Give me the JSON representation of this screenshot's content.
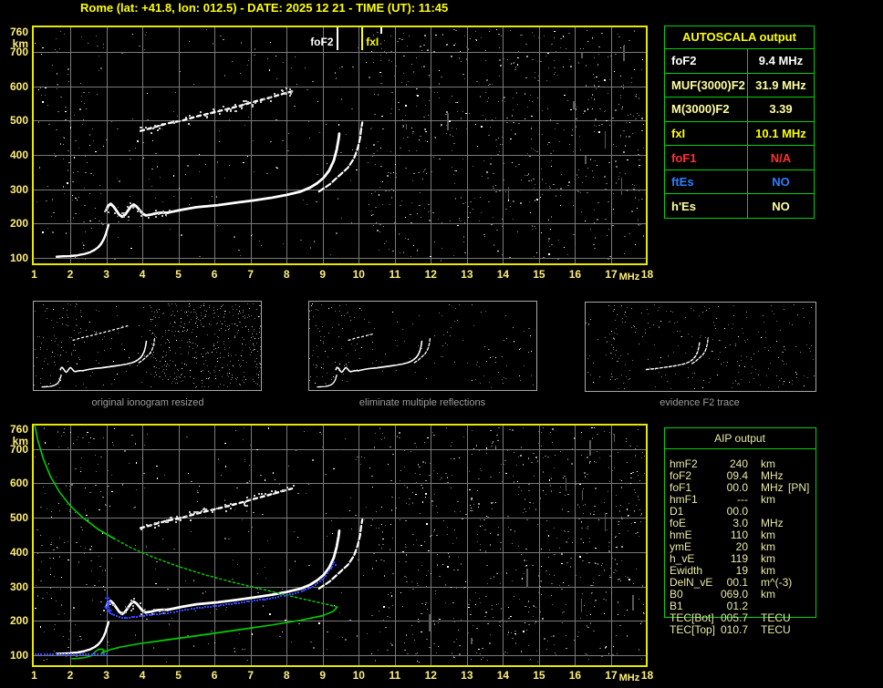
{
  "title": "Rome (lat: +41.8, lon: 012.5) - DATE: 2025 12 21 - TIME (UT): 11:45",
  "colors": {
    "background": "#000000",
    "title_yellow": "#ffff00",
    "axis_label_yellow": "#ffee77",
    "plot_border_yellow": "#e8e800",
    "grid_gray": "#7a7a7a",
    "table_border_green": "#00d400",
    "trace_white": "#ffffff",
    "profile_green": "#00d000",
    "fit_blue": "#3344ff",
    "marker_foF2": "#ffffff",
    "marker_fxI": "#ffff00",
    "pale_yellow": "#ffff9e",
    "red": "#ff3030",
    "blue": "#2a7fff",
    "caption_gray": "#9d9d9d"
  },
  "autoscala_table": {
    "header": "AUTOSCALA output",
    "rows": [
      {
        "param": "foF2",
        "value": "9.4 MHz",
        "color": "#ffffff"
      },
      {
        "param": "MUF(3000)F2",
        "value": "31.9 MHz",
        "color": "#ffff9e"
      },
      {
        "param": "M(3000)F2",
        "value": "3.39",
        "color": "#ffff9e"
      },
      {
        "param": "fxI",
        "value": "10.1 MHz",
        "color": "#ffff00"
      },
      {
        "param": "foF1",
        "value": "N/A",
        "color": "#ff3030"
      },
      {
        "param": "ftEs",
        "value": "NO",
        "color": "#2a7fff"
      },
      {
        "param": "h'Es",
        "value": "NO",
        "color": "#ffff9e"
      }
    ]
  },
  "aip_table": {
    "header": "AIP output",
    "rows": [
      {
        "param": "hmF2",
        "value": "240",
        "unit": "km",
        "note": ""
      },
      {
        "param": "foF2",
        "value": "09.4",
        "unit": "MHz",
        "note": ""
      },
      {
        "param": "foF1",
        "value": "00.0",
        "unit": "MHz",
        "note": "[PN]"
      },
      {
        "param": "hmF1",
        "value": "---",
        "unit": "km",
        "note": ""
      },
      {
        "param": "D1",
        "value": "00.0",
        "unit": "",
        "note": ""
      },
      {
        "param": "foE",
        "value": "3.0",
        "unit": "MHz",
        "note": ""
      },
      {
        "param": "hmE",
        "value": "110",
        "unit": "km",
        "note": ""
      },
      {
        "param": "ymE",
        "value": "20",
        "unit": "km",
        "note": ""
      },
      {
        "param": "h_vE",
        "value": "119",
        "unit": "km",
        "note": ""
      },
      {
        "param": "Ewidth",
        "value": "19",
        "unit": "km",
        "note": ""
      },
      {
        "param": "DelN_vE",
        "value": "00.1",
        "unit": "m^(-3)",
        "note": ""
      },
      {
        "param": "B0",
        "value": "069.0",
        "unit": "km",
        "note": ""
      },
      {
        "param": "B1",
        "value": "01.2",
        "unit": "",
        "note": ""
      },
      {
        "param": "TEC[Bot]",
        "value": "005.7",
        "unit": "TECU",
        "note": ""
      },
      {
        "param": "TEC[Top]",
        "value": "010.7",
        "unit": "TECU",
        "note": ""
      }
    ]
  },
  "thumbnails": [
    {
      "caption": "original ionogram resized"
    },
    {
      "caption": "eliminate multiple reflections"
    },
    {
      "caption": "evidence F2 trace"
    }
  ],
  "chart_data": [
    {
      "id": "ionogram-top",
      "type": "scatter",
      "title": "vertical ionogram with autoscaled characteristics",
      "xlabel": "MHz",
      "ylabel": "km",
      "xlim": [
        1,
        18
      ],
      "ylim": [
        100,
        760
      ],
      "grid": true,
      "x_ticks": [
        "1",
        "2",
        "3",
        "4",
        "5",
        "6",
        "7",
        "8",
        "9",
        "10",
        "11",
        "12",
        "13",
        "14",
        "15",
        "16",
        "17",
        "18"
      ],
      "y_ticks": [
        "760",
        "km",
        "700",
        "600",
        "500",
        "400",
        "300",
        "200",
        "100"
      ],
      "markers": {
        "foF2": {
          "label": "foF2",
          "MHz": 9.4,
          "color": "#ffffff"
        },
        "fxI": {
          "label": "fxI",
          "MHz": 10.1,
          "color": "#ffff00"
        },
        "extra_tick_MHz": 10.6
      },
      "traces": {
        "e_layer": [
          [
            1.62,
            104
          ],
          [
            1.8,
            105
          ],
          [
            2.0,
            106
          ],
          [
            2.2,
            108
          ],
          [
            2.4,
            112
          ],
          [
            2.55,
            117
          ],
          [
            2.68,
            124
          ],
          [
            2.78,
            132
          ],
          [
            2.86,
            142
          ],
          [
            2.93,
            155
          ],
          [
            2.98,
            168
          ],
          [
            3.02,
            182
          ],
          [
            3.06,
            196
          ]
        ],
        "f_wiggle": [
          [
            3.0,
            240
          ],
          [
            3.05,
            252
          ],
          [
            3.12,
            258
          ],
          [
            3.2,
            250
          ],
          [
            3.28,
            238
          ],
          [
            3.36,
            226
          ],
          [
            3.44,
            220
          ],
          [
            3.52,
            226
          ],
          [
            3.6,
            238
          ],
          [
            3.68,
            250
          ],
          [
            3.76,
            256
          ],
          [
            3.84,
            250
          ],
          [
            3.92,
            240
          ],
          [
            4.0,
            230
          ],
          [
            4.1,
            224
          ],
          [
            4.25,
            227
          ],
          [
            4.4,
            231
          ],
          [
            4.55,
            232
          ],
          [
            4.7,
            232
          ]
        ],
        "f_main": [
          [
            4.7,
            232
          ],
          [
            5.1,
            241
          ],
          [
            5.5,
            248
          ],
          [
            6.1,
            254
          ],
          [
            6.6,
            261
          ],
          [
            7.1,
            268
          ],
          [
            7.6,
            276
          ],
          [
            8.0,
            284
          ],
          [
            8.4,
            294
          ],
          [
            8.65,
            305
          ],
          [
            8.85,
            318
          ],
          [
            9.03,
            334
          ],
          [
            9.18,
            355
          ],
          [
            9.31,
            384
          ],
          [
            9.39,
            416
          ],
          [
            9.44,
            445
          ],
          [
            9.46,
            462
          ]
        ],
        "x_branch": [
          [
            8.9,
            294
          ],
          [
            9.2,
            315
          ],
          [
            9.45,
            339
          ],
          [
            9.7,
            363
          ],
          [
            9.87,
            390
          ],
          [
            9.97,
            419
          ],
          [
            10.04,
            450
          ],
          [
            10.07,
            477
          ],
          [
            10.1,
            495
          ]
        ],
        "second_hop": [
          [
            3.95,
            470
          ],
          [
            4.3,
            480
          ],
          [
            4.7,
            492
          ],
          [
            5.1,
            500
          ],
          [
            5.5,
            512
          ],
          [
            5.9,
            522
          ],
          [
            6.3,
            532
          ],
          [
            6.7,
            543
          ],
          [
            7.1,
            555
          ],
          [
            7.5,
            566
          ],
          [
            7.9,
            578
          ],
          [
            8.15,
            585
          ]
        ]
      }
    },
    {
      "id": "ionogram-bottom",
      "type": "scatter",
      "title": "ionogram with restored trace and electron density profile",
      "xlabel": "MHz",
      "ylabel": "km",
      "xlim": [
        1,
        18
      ],
      "ylim": [
        100,
        760
      ],
      "grid": true,
      "x_ticks": [
        "1",
        "2",
        "3",
        "4",
        "5",
        "6",
        "7",
        "8",
        "9",
        "10",
        "11",
        "12",
        "13",
        "14",
        "15",
        "16",
        "17",
        "18"
      ],
      "y_ticks": [
        "760",
        "km",
        "700",
        "600",
        "500",
        "400",
        "300",
        "200",
        "100"
      ],
      "white_traces": "same_as_ionogram_top",
      "profile_topside_green": [
        [
          1.02,
          768
        ],
        [
          1.1,
          725
        ],
        [
          1.25,
          672
        ],
        [
          1.45,
          620
        ],
        [
          1.7,
          575
        ],
        [
          2.0,
          535
        ],
        [
          2.35,
          500
        ],
        [
          2.75,
          468
        ],
        [
          3.2,
          440
        ],
        [
          3.7,
          412
        ],
        [
          4.3,
          385
        ],
        [
          5.0,
          358
        ],
        [
          5.8,
          332
        ],
        [
          6.6,
          310
        ],
        [
          7.4,
          290
        ],
        [
          8.1,
          272
        ],
        [
          8.7,
          258
        ],
        [
          9.15,
          247
        ],
        [
          9.4,
          240
        ]
      ],
      "profile_bottomside_green": [
        [
          9.4,
          240
        ],
        [
          9.3,
          228
        ],
        [
          9.0,
          215
        ],
        [
          8.4,
          202
        ],
        [
          7.6,
          188
        ],
        [
          6.8,
          176
        ],
        [
          6.0,
          164
        ],
        [
          5.2,
          152
        ],
        [
          4.5,
          142
        ],
        [
          3.9,
          133
        ],
        [
          3.4,
          124
        ],
        [
          3.1,
          116
        ],
        [
          2.95,
          110
        ],
        [
          2.86,
          104
        ]
      ],
      "profile_e_region_green": [
        [
          2.86,
          104
        ],
        [
          2.9,
          110
        ],
        [
          2.94,
          114
        ],
        [
          2.88,
          118
        ],
        [
          2.78,
          117
        ],
        [
          2.7,
          111
        ],
        [
          2.64,
          104
        ],
        [
          2.55,
          97
        ],
        [
          2.4,
          93
        ],
        [
          2.2,
          91
        ],
        [
          2.05,
          90
        ]
      ],
      "fitted_trace_blue": [
        [
          3.02,
          238
        ],
        [
          3.1,
          228
        ],
        [
          3.2,
          222
        ],
        [
          3.35,
          217
        ],
        [
          3.5,
          215
        ],
        [
          3.7,
          217
        ],
        [
          3.9,
          220
        ],
        [
          4.1,
          222
        ],
        [
          4.4,
          226
        ],
        [
          4.7,
          229
        ],
        [
          5.1,
          237
        ],
        [
          5.5,
          244
        ],
        [
          6.1,
          251
        ],
        [
          6.6,
          258
        ],
        [
          7.1,
          265
        ],
        [
          7.6,
          273
        ],
        [
          8.0,
          281
        ],
        [
          8.4,
          291
        ],
        [
          8.65,
          302
        ],
        [
          8.85,
          315
        ],
        [
          9.03,
          331
        ],
        [
          9.18,
          352
        ],
        [
          9.3,
          378
        ],
        [
          9.35,
          370
        ]
      ],
      "fit_plus_marks_blue": [
        [
          3.03,
          266
        ],
        [
          3.06,
          252
        ],
        [
          3.02,
          240
        ],
        [
          3.09,
          230
        ]
      ],
      "baseline_blue": {
        "height_km": 105,
        "f_start_MHz": 1.02,
        "f_end_MHz": 3.0
      }
    }
  ]
}
